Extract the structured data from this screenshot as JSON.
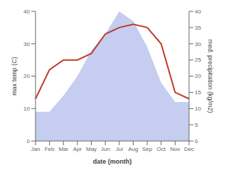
{
  "chart_data": {
    "type": "line",
    "categories": [
      "Jan",
      "Feb",
      "Mar",
      "Apr",
      "May",
      "Jun",
      "Jul",
      "Aug",
      "Sep",
      "Oct",
      "Nov",
      "Dec"
    ],
    "series": [
      {
        "type": "area",
        "color": "#c5cdf0",
        "axis": "y2",
        "values": [
          9,
          9,
          14,
          20,
          28,
          33,
          40,
          37,
          29,
          18,
          12,
          12
        ]
      },
      {
        "type": "line",
        "color": "#c0392b",
        "values": [
          13,
          22,
          25,
          25,
          27,
          33,
          35,
          36,
          35,
          30,
          15,
          13
        ]
      }
    ],
    "xlabel": "date (month)",
    "ylabel": "max temp (C)",
    "y2label": "med. precipitation (kg/m2)",
    "ylim": [
      0,
      40
    ],
    "yticks": [
      0,
      10,
      20,
      30,
      40
    ],
    "y2lim": [
      0,
      40
    ],
    "y2ticks": [
      0,
      5,
      10,
      15,
      20,
      25,
      30,
      35,
      40
    ],
    "grid": false
  }
}
